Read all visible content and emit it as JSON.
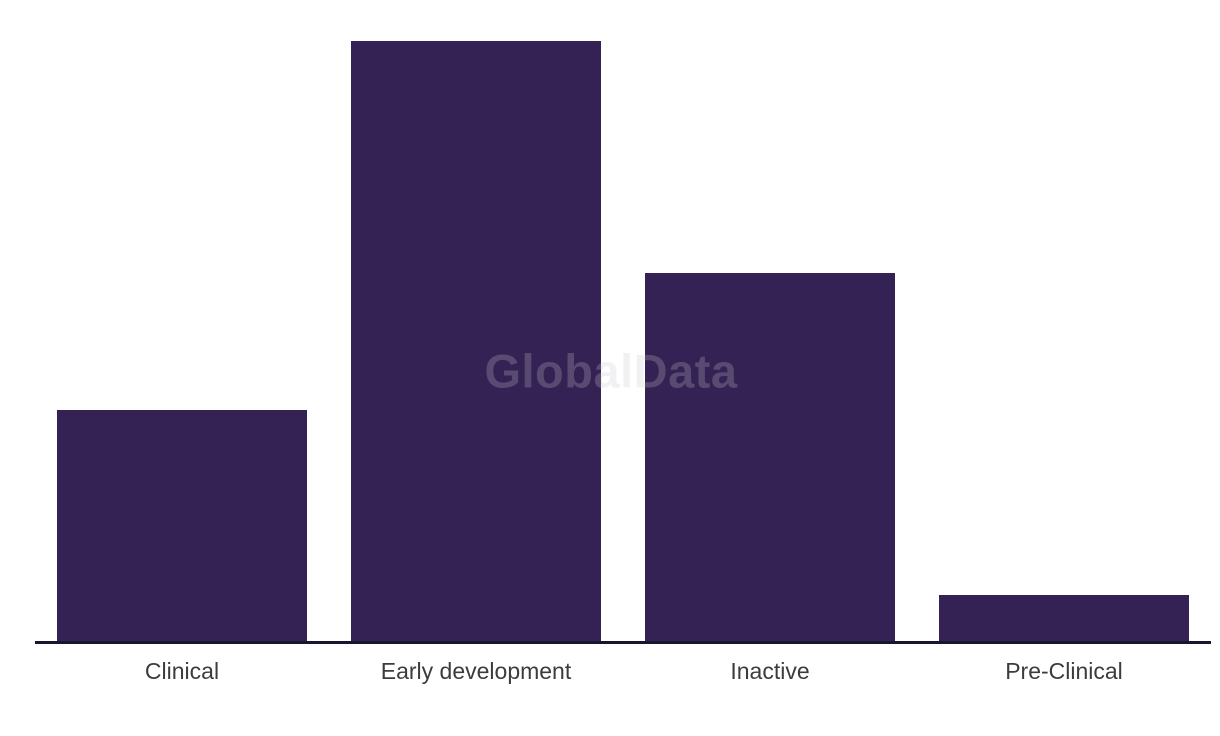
{
  "chart_data": {
    "type": "bar",
    "title": "",
    "xlabel": "",
    "ylabel": "",
    "categories": [
      "Clinical",
      "Early development",
      "Inactive",
      "Pre-Clinical"
    ],
    "values": [
      231,
      600,
      368,
      46
    ],
    "ylim": [
      0,
      600
    ],
    "grid": false,
    "legend": false,
    "y_axis_visible": false,
    "bar_color": "#352254",
    "axis_line_color": "#16162e",
    "label_color": "#3c3c3c",
    "background_color": "#ffffff"
  },
  "watermark": {
    "text": "GlobalData",
    "color": "#c9c9ce"
  }
}
